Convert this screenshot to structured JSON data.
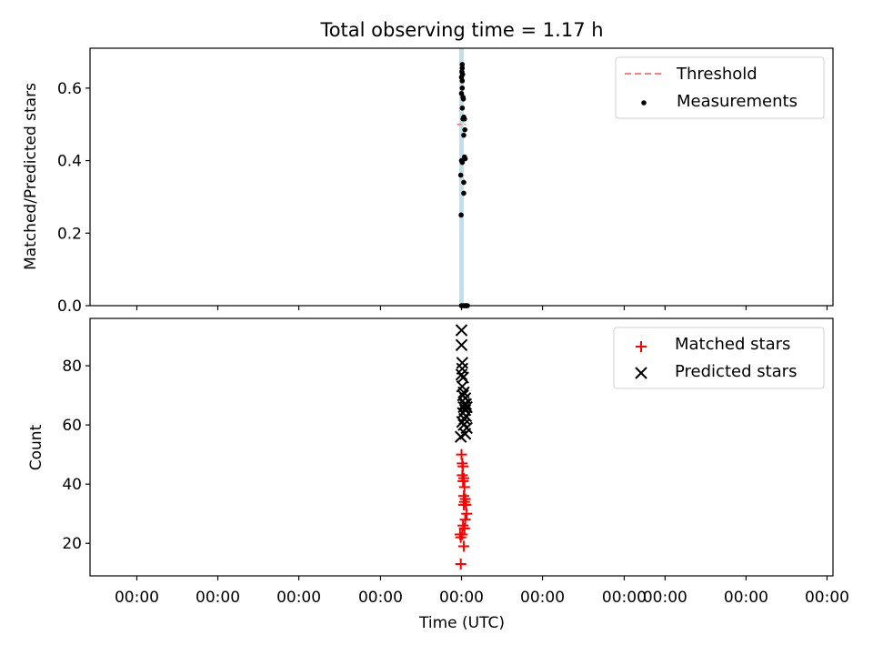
{
  "chart_data": [
    {
      "type": "scatter",
      "title": "Total observing time = 1.17 h",
      "xlabel": "",
      "ylabel": "Matched/Predicted stars",
      "ylim": [
        0,
        0.71
      ],
      "yticks": [
        "0.0",
        "0.2",
        "0.4",
        "0.6"
      ],
      "ytick_values": [
        0.0,
        0.2,
        0.4,
        0.6
      ],
      "xlim": [
        -0.5,
        0.5
      ],
      "grid": false,
      "legend_position": "top-right",
      "threshold": {
        "name": "Threshold",
        "value": 0.5,
        "color": "#ff7f7f",
        "x_range": [
          -0.006,
          0.006
        ]
      },
      "shaded_band": {
        "x": [
          -0.003,
          0.003
        ],
        "color": "#add8e6"
      },
      "series": [
        {
          "name": "Measurements",
          "color": "#000000",
          "marker": "dot",
          "x": [
            0.001,
            0.001,
            0.0005,
            0.0015,
            0.0,
            0.001,
            0.001,
            0.0,
            0.002,
            0.0025,
            0.001,
            0.003,
            0.002,
            0.004,
            0.0045,
            0.003,
            0.004,
            0.005,
            0.0,
            0.001,
            -0.001,
            0.003,
            0.003,
            -0.0005,
            0.0,
            0.002,
            0.004,
            0.006,
            0.008,
            0.007,
            0.005
          ],
          "y": [
            0.665,
            0.655,
            0.645,
            0.638,
            0.63,
            0.62,
            0.6,
            0.585,
            0.575,
            0.57,
            0.545,
            0.52,
            0.515,
            0.515,
            0.485,
            0.47,
            0.41,
            0.405,
            0.4,
            0.395,
            0.36,
            0.34,
            0.31,
            0.25,
            0.0,
            0.0,
            0.0,
            0.0,
            0.0,
            0.0,
            0.0
          ]
        }
      ]
    },
    {
      "type": "scatter",
      "title": "",
      "xlabel": "Time (UTC)",
      "ylabel": "Count",
      "ylim": [
        9,
        96
      ],
      "yticks": [
        "20",
        "40",
        "60",
        "80"
      ],
      "ytick_values": [
        20,
        40,
        60,
        80
      ],
      "xlim": [
        -0.5,
        0.5
      ],
      "xticks": [
        "00:00",
        "00:00",
        "00:00",
        "00:00",
        "00:00",
        "00:00",
        "00:00",
        "00:00",
        "00:00",
        "00:00"
      ],
      "xtick_values": [
        -0.437,
        -0.328,
        -0.219,
        -0.109,
        0.0,
        0.109,
        0.219,
        0.274,
        0.383,
        0.492
      ],
      "grid": false,
      "legend_position": "top-right",
      "series": [
        {
          "name": "Matched stars",
          "color": "#ff0000",
          "marker": "plus",
          "x": [
            0.0,
            0.001,
            0.002,
            0.001,
            0.003,
            0.002,
            0.004,
            0.003,
            0.005,
            0.004,
            0.006,
            0.003,
            0.007,
            0.005,
            0.002,
            0.004,
            0.001,
            -0.001,
            -0.002,
            0.003,
            -0.001
          ],
          "y": [
            50,
            47,
            46,
            43,
            42,
            41,
            39,
            36,
            35,
            34,
            33,
            33,
            30,
            28,
            26,
            25,
            23,
            22,
            23,
            19,
            13
          ]
        },
        {
          "name": "Predicted stars",
          "color": "#000000",
          "marker": "x",
          "x": [
            0.0,
            0.0,
            0.001,
            0.001,
            0.0,
            0.002,
            0.001,
            0.003,
            0.002,
            0.005,
            0.004,
            0.006,
            0.003,
            0.007,
            0.005,
            0.002,
            0.006,
            0.004,
            0.001,
            0.003,
            0.007,
            0.005,
            -0.001
          ],
          "y": [
            92,
            87,
            81,
            79,
            77,
            76,
            73,
            71,
            70,
            69,
            67,
            67,
            66,
            66,
            65,
            64,
            63,
            62,
            61,
            60,
            59,
            57,
            56
          ]
        }
      ]
    }
  ]
}
